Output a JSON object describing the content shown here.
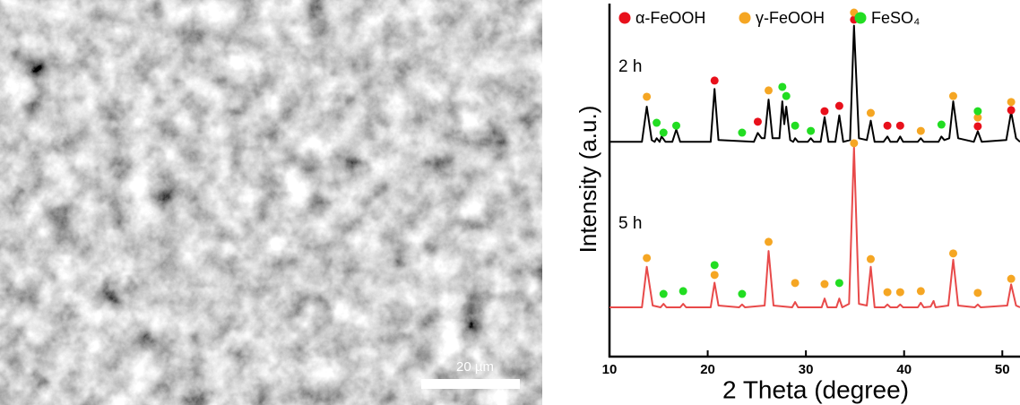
{
  "image": {
    "scale_bar": "20 µm"
  },
  "chart_data": {
    "type": "line",
    "x_label": "2 Theta (degree)",
    "y_label": "Intensity (a.u.)",
    "xlim": [
      10,
      51.8
    ],
    "ylim": [
      0,
      100
    ],
    "xticks": [
      10,
      20,
      30,
      40,
      50
    ],
    "legend": "top",
    "series": [
      {
        "name": "2 h",
        "type": "line",
        "color": "#000000",
        "x": [
          10,
          13.3,
          13.8,
          14.3,
          14.6,
          14.8,
          15.1,
          15.3,
          15.7,
          16.4,
          16.8,
          17.2,
          20.3,
          20.7,
          21.1,
          24.7,
          25.1,
          25.5,
          25.8,
          26.2,
          26.6,
          27.3,
          27.6,
          27.8,
          28.0,
          28.4,
          28.7,
          28.9,
          29.2,
          30.2,
          30.5,
          30.8,
          31.5,
          31.9,
          32.3,
          33.0,
          33.4,
          33.8,
          34.5,
          34.9,
          35.4,
          36.2,
          36.6,
          37.0,
          37.9,
          38.3,
          38.6,
          39.3,
          39.6,
          39.9,
          41.4,
          41.7,
          42.0,
          43.5,
          43.8,
          44.1,
          44.6,
          45.0,
          45.5,
          47.1,
          47.5,
          47.9,
          50.4,
          50.9,
          51.4,
          51.8
        ],
        "values": [
          61,
          61,
          71,
          61.5,
          61,
          62,
          61,
          62.5,
          61,
          61,
          64.5,
          61,
          61,
          76,
          61.5,
          61,
          63.5,
          62,
          62,
          73,
          62,
          62,
          72.5,
          66,
          71,
          61.5,
          61,
          62,
          61,
          61,
          62,
          61,
          61,
          68,
          61,
          61,
          68.5,
          61,
          61.5,
          94,
          62,
          61.5,
          67,
          61,
          61,
          62.5,
          61,
          61,
          62.5,
          61,
          61,
          62,
          61,
          61,
          62.5,
          61.5,
          62,
          72.5,
          62,
          61,
          64,
          61,
          61.5,
          69.5,
          62,
          61
        ]
      },
      {
        "name": "5 h",
        "type": "line",
        "color": "#e84a4a",
        "x": [
          10,
          13.3,
          13.8,
          14.4,
          15.2,
          15.5,
          15.8,
          17.2,
          17.5,
          17.8,
          20.3,
          20.7,
          21.1,
          23.2,
          23.5,
          23.8,
          25.8,
          26.2,
          26.7,
          28.6,
          28.9,
          29.2,
          31.6,
          31.9,
          32.2,
          33.1,
          33.4,
          33.7,
          34.4,
          34.9,
          35.4,
          36.2,
          36.6,
          37.0,
          38.0,
          38.3,
          38.6,
          39.3,
          39.6,
          39.9,
          41.4,
          41.7,
          42.0,
          42.7,
          43.0,
          43.2,
          44.5,
          45.0,
          45.5,
          47.2,
          47.5,
          47.8,
          50.5,
          50.9,
          51.4,
          51.8
        ],
        "values": [
          14,
          14,
          25.5,
          14.5,
          14,
          15,
          14,
          14,
          15,
          14,
          14,
          21,
          14.5,
          14,
          14.8,
          14,
          14.5,
          30,
          14.5,
          14,
          15.5,
          14,
          14,
          16.5,
          14,
          14,
          16.5,
          14,
          15,
          59.5,
          15,
          14.5,
          25.5,
          14,
          14,
          14.8,
          14,
          14,
          14.8,
          14,
          14,
          15.3,
          14,
          14.2,
          15.8,
          14,
          14.5,
          27.5,
          14.5,
          14,
          14.8,
          14,
          14.5,
          20.5,
          14.5,
          14
        ]
      },
      {
        "name": "α-FeOOH",
        "type": "scatter",
        "color": "#e8101b",
        "x": [
          20.7,
          25.1,
          31.9,
          33.4,
          34.9,
          38.3,
          39.6,
          47.5,
          50.9
        ],
        "values": [
          78.4,
          66.7,
          69.7,
          71.2,
          95.7,
          65.6,
          65.6,
          65.4,
          70.0
        ]
      },
      {
        "name": "γ-FeOOH",
        "type": "scatter",
        "color": "#f5a623",
        "x": [
          13.8,
          26.2,
          34.9,
          36.6,
          41.7,
          45.0,
          47.5,
          50.9,
          13.8,
          20.7,
          26.2,
          28.9,
          31.9,
          34.9,
          36.6,
          38.3,
          39.6,
          41.7,
          45.0,
          47.5,
          50.9
        ],
        "values": [
          73.8,
          75.6,
          97.7,
          69.2,
          64.1,
          74.0,
          67.9,
          72.3,
          28.0,
          23.2,
          32.6,
          20.9,
          20.6,
          60.6,
          27.7,
          18.3,
          18.3,
          18.6,
          29.3,
          18.1,
          22.1
        ]
      },
      {
        "name": "FeSO₄",
        "type": "scatter",
        "color": "#22dd22",
        "x": [
          14.8,
          15.5,
          16.8,
          23.5,
          27.6,
          28.0,
          28.9,
          30.5,
          43.8,
          47.5,
          15.5,
          17.5,
          20.7,
          23.5,
          33.4
        ],
        "values": [
          66.4,
          63.6,
          65.6,
          63.6,
          76.6,
          74.0,
          65.6,
          64.1,
          65.9,
          69.7,
          17.8,
          18.6,
          26.0,
          17.8,
          20.9
        ]
      }
    ]
  }
}
